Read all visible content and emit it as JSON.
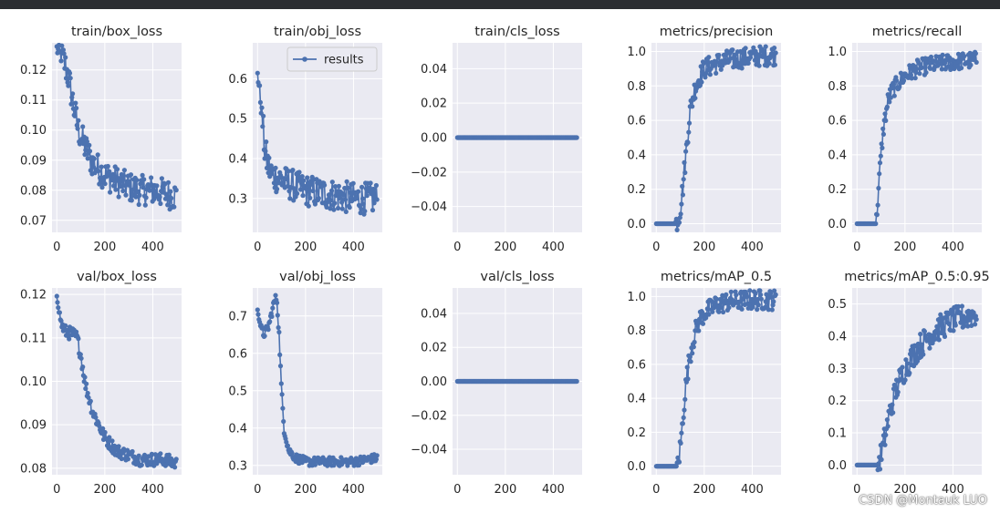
{
  "window": {
    "topbar_color": "#2b2d31"
  },
  "watermark": "CSDN @Montauk LUO",
  "style": {
    "series_color": "#4c72b0",
    "plot_background": "#eaeaf2",
    "grid_color": "#ffffff"
  },
  "chart_data": [
    {
      "type": "line",
      "title": "train/box_loss",
      "xlim": [
        -20,
        520
      ],
      "ylim": [
        0.066,
        0.129
      ],
      "xticks": [
        0,
        200,
        400
      ],
      "xtick_labels": [
        "0",
        "200",
        "400"
      ],
      "yticks": [
        0.07,
        0.08,
        0.09,
        0.1,
        0.11,
        0.12
      ],
      "ytick_labels": [
        "0.07",
        "0.08",
        "0.09",
        "0.10",
        "0.11",
        "0.12"
      ],
      "x": [
        0,
        15,
        30,
        50,
        70,
        90,
        120,
        150,
        200,
        250,
        300,
        350,
        400,
        450,
        499
      ],
      "y": [
        0.127,
        0.125,
        0.123,
        0.117,
        0.108,
        0.1,
        0.094,
        0.089,
        0.085,
        0.083,
        0.081,
        0.08,
        0.08,
        0.079,
        0.078
      ],
      "noise": 0.005
    },
    {
      "type": "line",
      "title": "train/obj_loss",
      "xlim": [
        -20,
        520
      ],
      "ylim": [
        0.215,
        0.69
      ],
      "xticks": [
        0,
        200,
        400
      ],
      "xtick_labels": [
        "0",
        "200",
        "400"
      ],
      "yticks": [
        0.3,
        0.4,
        0.5,
        0.6
      ],
      "ytick_labels": [
        "0.3",
        "0.4",
        "0.5",
        "0.6"
      ],
      "legend": {
        "label": "results",
        "position": "top-right"
      },
      "x": [
        0,
        10,
        20,
        30,
        45,
        60,
        90,
        120,
        160,
        200,
        300,
        400,
        499
      ],
      "y": [
        0.62,
        0.56,
        0.5,
        0.42,
        0.38,
        0.36,
        0.35,
        0.34,
        0.33,
        0.32,
        0.31,
        0.3,
        0.3
      ],
      "noise": 0.04
    },
    {
      "type": "line",
      "title": "train/cls_loss",
      "xlim": [
        -20,
        520
      ],
      "ylim": [
        -0.055,
        0.055
      ],
      "xticks": [
        0,
        200,
        400
      ],
      "xtick_labels": [
        "0",
        "200",
        "400"
      ],
      "yticks": [
        -0.04,
        -0.02,
        0.0,
        0.02,
        0.04
      ],
      "ytick_labels": [
        "−0.04",
        "−0.02",
        "0.00",
        "0.02",
        "0.04"
      ],
      "x": [
        0,
        499
      ],
      "y": [
        0.0,
        0.0
      ],
      "noise": 0
    },
    {
      "type": "line",
      "title": "metrics/precision",
      "xlim": [
        -20,
        520
      ],
      "ylim": [
        -0.05,
        1.05
      ],
      "xticks": [
        0,
        200,
        400
      ],
      "xtick_labels": [
        "0",
        "200",
        "400"
      ],
      "yticks": [
        0.0,
        0.2,
        0.4,
        0.6,
        0.8,
        1.0
      ],
      "ytick_labels": [
        "0.0",
        "0.2",
        "0.4",
        "0.6",
        "0.8",
        "1.0"
      ],
      "x": [
        0,
        80,
        90,
        100,
        110,
        120,
        130,
        140,
        160,
        180,
        200,
        250,
        300,
        400,
        499
      ],
      "y": [
        0.0,
        0.0,
        0.02,
        0.08,
        0.2,
        0.35,
        0.5,
        0.65,
        0.78,
        0.85,
        0.9,
        0.93,
        0.95,
        0.97,
        0.98
      ],
      "noise": 0.06
    },
    {
      "type": "line",
      "title": "metrics/recall",
      "xlim": [
        -20,
        520
      ],
      "ylim": [
        -0.05,
        1.05
      ],
      "xticks": [
        0,
        200,
        400
      ],
      "xtick_labels": [
        "0",
        "200",
        "400"
      ],
      "yticks": [
        0.0,
        0.2,
        0.4,
        0.6,
        0.8,
        1.0
      ],
      "ytick_labels": [
        "0.0",
        "0.2",
        "0.4",
        "0.6",
        "0.8",
        "1.0"
      ],
      "x": [
        0,
        80,
        90,
        100,
        110,
        130,
        150,
        180,
        200,
        250,
        300,
        400,
        499
      ],
      "y": [
        0.0,
        0.0,
        0.2,
        0.4,
        0.55,
        0.72,
        0.78,
        0.83,
        0.86,
        0.9,
        0.92,
        0.94,
        0.95
      ],
      "noise": 0.05
    },
    {
      "type": "line",
      "title": "val/box_loss",
      "xlim": [
        -20,
        520
      ],
      "ylim": [
        0.0785,
        0.1215
      ],
      "xticks": [
        0,
        200,
        400
      ],
      "xtick_labels": [
        "0",
        "200",
        "400"
      ],
      "yticks": [
        0.08,
        0.09,
        0.1,
        0.11,
        0.12
      ],
      "ytick_labels": [
        "0.08",
        "0.09",
        "0.10",
        "0.11",
        "0.12"
      ],
      "x": [
        0,
        10,
        20,
        35,
        50,
        70,
        85,
        100,
        120,
        150,
        200,
        250,
        300,
        350,
        400,
        450,
        499
      ],
      "y": [
        0.12,
        0.116,
        0.113,
        0.1115,
        0.1112,
        0.1108,
        0.11,
        0.106,
        0.099,
        0.093,
        0.087,
        0.084,
        0.083,
        0.082,
        0.082,
        0.082,
        0.081
      ],
      "noise": 0.0015
    },
    {
      "type": "line",
      "title": "val/obj_loss",
      "xlim": [
        -20,
        520
      ],
      "ylim": [
        0.275,
        0.775
      ],
      "xticks": [
        0,
        200,
        400
      ],
      "xtick_labels": [
        "0",
        "200",
        "400"
      ],
      "yticks": [
        0.3,
        0.4,
        0.5,
        0.6,
        0.7
      ],
      "ytick_labels": [
        "0.3",
        "0.4",
        "0.5",
        "0.6",
        "0.7"
      ],
      "x": [
        0,
        10,
        25,
        45,
        60,
        70,
        80,
        90,
        100,
        110,
        130,
        160,
        200,
        300,
        400,
        499
      ],
      "y": [
        0.72,
        0.68,
        0.65,
        0.67,
        0.71,
        0.74,
        0.75,
        0.65,
        0.5,
        0.4,
        0.34,
        0.32,
        0.31,
        0.31,
        0.31,
        0.32
      ],
      "noise": 0.012
    },
    {
      "type": "line",
      "title": "val/cls_loss",
      "xlim": [
        -20,
        520
      ],
      "ylim": [
        -0.055,
        0.055
      ],
      "xticks": [
        0,
        200,
        400
      ],
      "xtick_labels": [
        "0",
        "200",
        "400"
      ],
      "yticks": [
        -0.04,
        -0.02,
        0.0,
        0.02,
        0.04
      ],
      "ytick_labels": [
        "−0.04",
        "−0.02",
        "0.00",
        "0.02",
        "0.04"
      ],
      "x": [
        0,
        499
      ],
      "y": [
        0.0,
        0.0
      ],
      "noise": 0
    },
    {
      "type": "line",
      "title": "metrics/mAP_0.5",
      "xlim": [
        -20,
        520
      ],
      "ylim": [
        -0.05,
        1.05
      ],
      "xticks": [
        0,
        200,
        400
      ],
      "xtick_labels": [
        "0",
        "200",
        "400"
      ],
      "yticks": [
        0.0,
        0.2,
        0.4,
        0.6,
        0.8,
        1.0
      ],
      "ytick_labels": [
        "0.0",
        "0.2",
        "0.4",
        "0.6",
        "0.8",
        "1.0"
      ],
      "x": [
        0,
        85,
        95,
        105,
        115,
        125,
        140,
        160,
        180,
        200,
        250,
        300,
        400,
        499
      ],
      "y": [
        0.0,
        0.0,
        0.05,
        0.18,
        0.35,
        0.5,
        0.65,
        0.78,
        0.86,
        0.9,
        0.95,
        0.97,
        0.98,
        0.98
      ],
      "noise": 0.06
    },
    {
      "type": "line",
      "title": "metrics/mAP_0.5:0.95",
      "xlim": [
        -20,
        520
      ],
      "ylim": [
        -0.03,
        0.55
      ],
      "xticks": [
        0,
        200,
        400
      ],
      "xtick_labels": [
        "0",
        "200",
        "400"
      ],
      "yticks": [
        0.0,
        0.1,
        0.2,
        0.3,
        0.4,
        0.5
      ],
      "ytick_labels": [
        "0.0",
        "0.1",
        "0.2",
        "0.3",
        "0.4",
        "0.5"
      ],
      "x": [
        0,
        85,
        100,
        115,
        130,
        150,
        170,
        200,
        250,
        300,
        350,
        400,
        450,
        499
      ],
      "y": [
        0.0,
        0.0,
        0.03,
        0.08,
        0.14,
        0.2,
        0.25,
        0.3,
        0.36,
        0.4,
        0.43,
        0.45,
        0.46,
        0.47
      ],
      "noise": 0.04
    }
  ]
}
